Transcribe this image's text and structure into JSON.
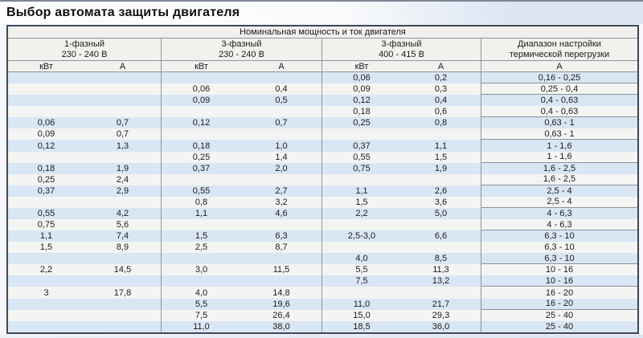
{
  "page_title": "Выбор автомата защиты двигателя",
  "table": {
    "span_header": "Номинальная мощность и ток двигателя",
    "groups": [
      {
        "line1": "1-фазный",
        "line2": "230 - 240 В",
        "sub": [
          "кВт",
          "А"
        ]
      },
      {
        "line1": "3-фазный",
        "line2": "230 - 240 В",
        "sub": [
          "кВт",
          "А"
        ]
      },
      {
        "line1": "3-фазный",
        "line2": "400 - 415 В",
        "sub": [
          "кВт",
          "А"
        ]
      },
      {
        "line1": "Диапазон настройки",
        "line2": "термической перегрузки",
        "sub": [
          "А"
        ]
      }
    ],
    "columns": [
      "1ph-230-kw",
      "1ph-230-a",
      "3ph-230-kw",
      "3ph-230-a",
      "3ph-400-kw",
      "3ph-400-a",
      "overload-range"
    ],
    "rows": [
      {
        "c": [
          "",
          "",
          "",
          "",
          "0,06",
          "0,2",
          "0,16 - 0,25"
        ],
        "line_below": true
      },
      {
        "c": [
          "",
          "",
          "0,06",
          "0,4",
          "0,09",
          "0,3",
          "0,25 - 0,4"
        ],
        "line_below": true
      },
      {
        "c": [
          "",
          "",
          "0,09",
          "0,5",
          "0,12",
          "0,4",
          "0,4 - 0,63"
        ],
        "line_below": false
      },
      {
        "c": [
          "",
          "",
          "",
          "",
          "0,18",
          "0,6",
          "0,4 - 0,63"
        ],
        "line_below": true
      },
      {
        "c": [
          "0,06",
          "0,7",
          "0,12",
          "0,7",
          "0,25",
          "0,8",
          "0,63 - 1"
        ],
        "line_below": false
      },
      {
        "c": [
          "0,09",
          "0,7",
          "",
          "",
          "",
          "",
          "0,63 - 1"
        ],
        "line_below": true
      },
      {
        "c": [
          "0,12",
          "1,3",
          "0,18",
          "1,0",
          "0,37",
          "1,1",
          "1 - 1,6"
        ],
        "line_below": false
      },
      {
        "c": [
          "",
          "",
          "0,25",
          "1,4",
          "0,55",
          "1,5",
          "1 - 1,6"
        ],
        "line_below": true
      },
      {
        "c": [
          "0,18",
          "1,9",
          "0,37",
          "2,0",
          "0,75",
          "1,9",
          "1,6 - 2,5"
        ],
        "line_below": false
      },
      {
        "c": [
          "0,25",
          "2,4",
          "",
          "",
          "",
          "",
          "1,6 - 2,5"
        ],
        "line_below": true
      },
      {
        "c": [
          "0,37",
          "2,9",
          "0,55",
          "2,7",
          "1,1",
          "2,6",
          "2,5 - 4"
        ],
        "line_below": false
      },
      {
        "c": [
          "",
          "",
          "0,8",
          "3,2",
          "1,5",
          "3,6",
          "2,5 - 4"
        ],
        "line_below": true
      },
      {
        "c": [
          "0,55",
          "4,2",
          "1,1",
          "4,6",
          "2,2",
          "5,0",
          "4 - 6,3"
        ],
        "line_below": false
      },
      {
        "c": [
          "0,75",
          "5,6",
          "",
          "",
          "",
          "",
          "4 - 6,3"
        ],
        "line_below": true
      },
      {
        "c": [
          "1,1",
          "7,4",
          "1,5",
          "6,3",
          "2,5-3,0",
          "6,6",
          "6,3 - 10"
        ],
        "line_below": false
      },
      {
        "c": [
          "1,5",
          "8,9",
          "2,5",
          "8,7",
          "",
          "",
          "6,3 - 10"
        ],
        "line_below": false
      },
      {
        "c": [
          "",
          "",
          "",
          "",
          "4,0",
          "8,5",
          "6,3 - 10"
        ],
        "line_below": true
      },
      {
        "c": [
          "2,2",
          "14,5",
          "3,0",
          "11,5",
          "5,5",
          "11,3",
          "10 - 16"
        ],
        "line_below": false
      },
      {
        "c": [
          "",
          "",
          "",
          "",
          "7,5",
          "13,2",
          "10 - 16"
        ],
        "line_below": true
      },
      {
        "c": [
          "3",
          "17,8",
          "4,0",
          "14,8",
          "",
          "",
          "16 - 20"
        ],
        "line_below": false
      },
      {
        "c": [
          "",
          "",
          "5,5",
          "19,6",
          "11,0",
          "21,7",
          "16 - 20"
        ],
        "line_below": true
      },
      {
        "c": [
          "",
          "",
          "7,5",
          "26,4",
          "15,0",
          "29,3",
          "25 - 40"
        ],
        "line_below": false
      },
      {
        "c": [
          "",
          "",
          "11,0",
          "38,0",
          "18,5",
          "36,0",
          "25 - 40"
        ],
        "line_below": false
      }
    ]
  },
  "colors": {
    "stripe_blue": "#d9e6f4",
    "stripe_white": "#f4f4f2",
    "grid_line": "#8f949c",
    "outer_border": "#3e4759",
    "top_band_blue": "#dce5f3"
  }
}
